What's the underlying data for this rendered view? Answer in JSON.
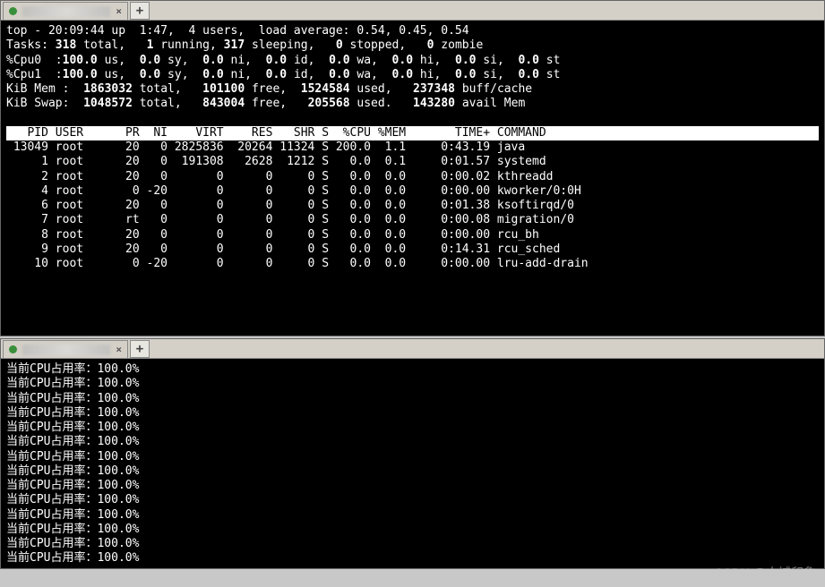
{
  "tabs": {
    "new_tab_glyph": "+",
    "close_glyph": "×"
  },
  "top": {
    "header": {
      "time": "20:09:44",
      "uptime": "1:47",
      "users": "4",
      "load1": "0.54",
      "load5": "0.45",
      "load15": "0.54"
    },
    "tasks": {
      "total": "318",
      "running": "1",
      "sleeping": "317",
      "stopped": "0",
      "zombie": "0"
    },
    "cpu0": {
      "us": "100.0",
      "sy": "0.0",
      "ni": "0.0",
      "id": "0.0",
      "wa": "0.0",
      "hi": "0.0",
      "si": "0.0",
      "st": "0.0"
    },
    "cpu1": {
      "us": "100.0",
      "sy": "0.0",
      "ni": "0.0",
      "id": "0.0",
      "wa": "0.0",
      "hi": "0.0",
      "si": "0.0",
      "st": "0.0"
    },
    "mem": {
      "total": "1863032",
      "free": "101100",
      "used": "1524584",
      "buff": "237348"
    },
    "swap": {
      "total": "1048572",
      "free": "843004",
      "used": "205568",
      "avail": "143280"
    },
    "cols": {
      "pid": "PID",
      "user": "USER",
      "pr": "PR",
      "ni": "NI",
      "virt": "VIRT",
      "res": "RES",
      "shr": "SHR",
      "s": "S",
      "cpu": "%CPU",
      "mem": "%MEM",
      "time": "TIME+",
      "cmd": "COMMAND"
    },
    "rows": [
      {
        "pid": "13049",
        "user": "root",
        "pr": "20",
        "ni": "0",
        "virt": "2825836",
        "res": "20264",
        "shr": "11324",
        "s": "S",
        "cpu": "200.0",
        "mem": "1.1",
        "time": "0:43.19",
        "cmd": "java"
      },
      {
        "pid": "1",
        "user": "root",
        "pr": "20",
        "ni": "0",
        "virt": "191308",
        "res": "2628",
        "shr": "1212",
        "s": "S",
        "cpu": "0.0",
        "mem": "0.1",
        "time": "0:01.57",
        "cmd": "systemd"
      },
      {
        "pid": "2",
        "user": "root",
        "pr": "20",
        "ni": "0",
        "virt": "0",
        "res": "0",
        "shr": "0",
        "s": "S",
        "cpu": "0.0",
        "mem": "0.0",
        "time": "0:00.02",
        "cmd": "kthreadd"
      },
      {
        "pid": "4",
        "user": "root",
        "pr": "0",
        "ni": "-20",
        "virt": "0",
        "res": "0",
        "shr": "0",
        "s": "S",
        "cpu": "0.0",
        "mem": "0.0",
        "time": "0:00.00",
        "cmd": "kworker/0:0H"
      },
      {
        "pid": "6",
        "user": "root",
        "pr": "20",
        "ni": "0",
        "virt": "0",
        "res": "0",
        "shr": "0",
        "s": "S",
        "cpu": "0.0",
        "mem": "0.0",
        "time": "0:01.38",
        "cmd": "ksoftirqd/0"
      },
      {
        "pid": "7",
        "user": "root",
        "pr": "rt",
        "ni": "0",
        "virt": "0",
        "res": "0",
        "shr": "0",
        "s": "S",
        "cpu": "0.0",
        "mem": "0.0",
        "time": "0:00.08",
        "cmd": "migration/0"
      },
      {
        "pid": "8",
        "user": "root",
        "pr": "20",
        "ni": "0",
        "virt": "0",
        "res": "0",
        "shr": "0",
        "s": "S",
        "cpu": "0.0",
        "mem": "0.0",
        "time": "0:00.00",
        "cmd": "rcu_bh"
      },
      {
        "pid": "9",
        "user": "root",
        "pr": "20",
        "ni": "0",
        "virt": "0",
        "res": "0",
        "shr": "0",
        "s": "S",
        "cpu": "0.0",
        "mem": "0.0",
        "time": "0:14.31",
        "cmd": "rcu_sched"
      },
      {
        "pid": "10",
        "user": "root",
        "pr": "0",
        "ni": "-20",
        "virt": "0",
        "res": "0",
        "shr": "0",
        "s": "S",
        "cpu": "0.0",
        "mem": "0.0",
        "time": "0:00.00",
        "cmd": "lru-add-drain"
      }
    ]
  },
  "lower": {
    "line_prefix": "当前CPU占用率：",
    "values": [
      "100.0%",
      "100.0%",
      "100.0%",
      "100.0%",
      "100.0%",
      "100.0%",
      "100.0%",
      "100.0%",
      "100.0%",
      "100.0%",
      "100.0%",
      "100.0%",
      "100.0%",
      "100.0%"
    ]
  },
  "watermark": "CSDN @小城印象",
  "colors": {
    "bg_terminal": "#000000",
    "fg_terminal": "#ffffff",
    "tab_bar_bg": "#d4d0c8",
    "header_row_bg": "#ffffff",
    "header_row_fg": "#000000",
    "tab_dot": "#3a8f3a"
  }
}
